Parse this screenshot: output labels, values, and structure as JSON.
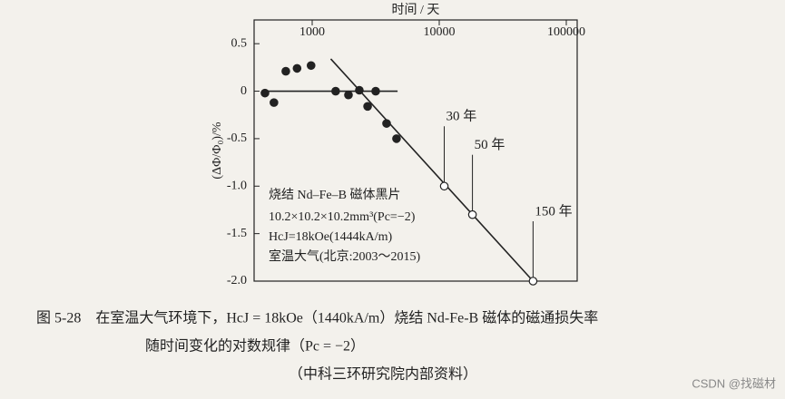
{
  "chart_data": {
    "type": "scatter",
    "x_label": "时间 / 天",
    "y_label": "(ΔΦ/Φ₀)/%",
    "xlim": [
      349,
      121800
    ],
    "x_log": true,
    "xticks": [
      1000,
      10000,
      100000
    ],
    "ylim": [
      -2.0,
      0.75
    ],
    "yticks": [
      0.5,
      0,
      -0.5,
      {
        "value": -1.0,
        "label": "-1.0"
      },
      -1.5,
      {
        "value": -2.0,
        "label": "-2.0"
      }
    ],
    "color": "#222222",
    "points": [
      {
        "marker": "filled",
        "x": [
          425,
          500,
          620,
          760,
          980,
          1530,
          1930,
          2350,
          2730,
          3160,
          3850,
          4610
        ],
        "values": [
          -0.02,
          -0.12,
          0.21,
          0.24,
          0.27,
          0.0,
          -0.04,
          0.01,
          -0.16,
          0.0,
          -0.34,
          -0.5
        ]
      },
      {
        "marker": "open",
        "x": [
          10950,
          18250,
          54750
        ],
        "values": [
          -1.0,
          -1.3,
          -2.0
        ],
        "point_labels": [
          "30 年",
          "50 年",
          "150 年"
        ]
      }
    ],
    "lines": [
      {
        "x": [
          420,
          4700
        ],
        "values": [
          0.0,
          0.0
        ]
      },
      {
        "x": [
          1400,
          54750
        ],
        "values": [
          0.34,
          -2.0
        ]
      }
    ],
    "legend_text": [
      "烧结 Nd–Fe–B 磁体黑片",
      "10.2×10.2×10.2mm³(Pc=−2)",
      "HcJ=18kOe(1444kA/m)",
      "室温大气(北京:2003～2015)"
    ]
  },
  "caption": [
    "图 5-28　在室温大气环境下，HcJ = 18kOe（1440kA/m）烧结 Nd-Fe-B 磁体的磁通损失率",
    "随时间变化的对数规律（Pc = −2）",
    "（中科三环研究院内部资料）"
  ],
  "watermark": "CSDN @找磁材"
}
